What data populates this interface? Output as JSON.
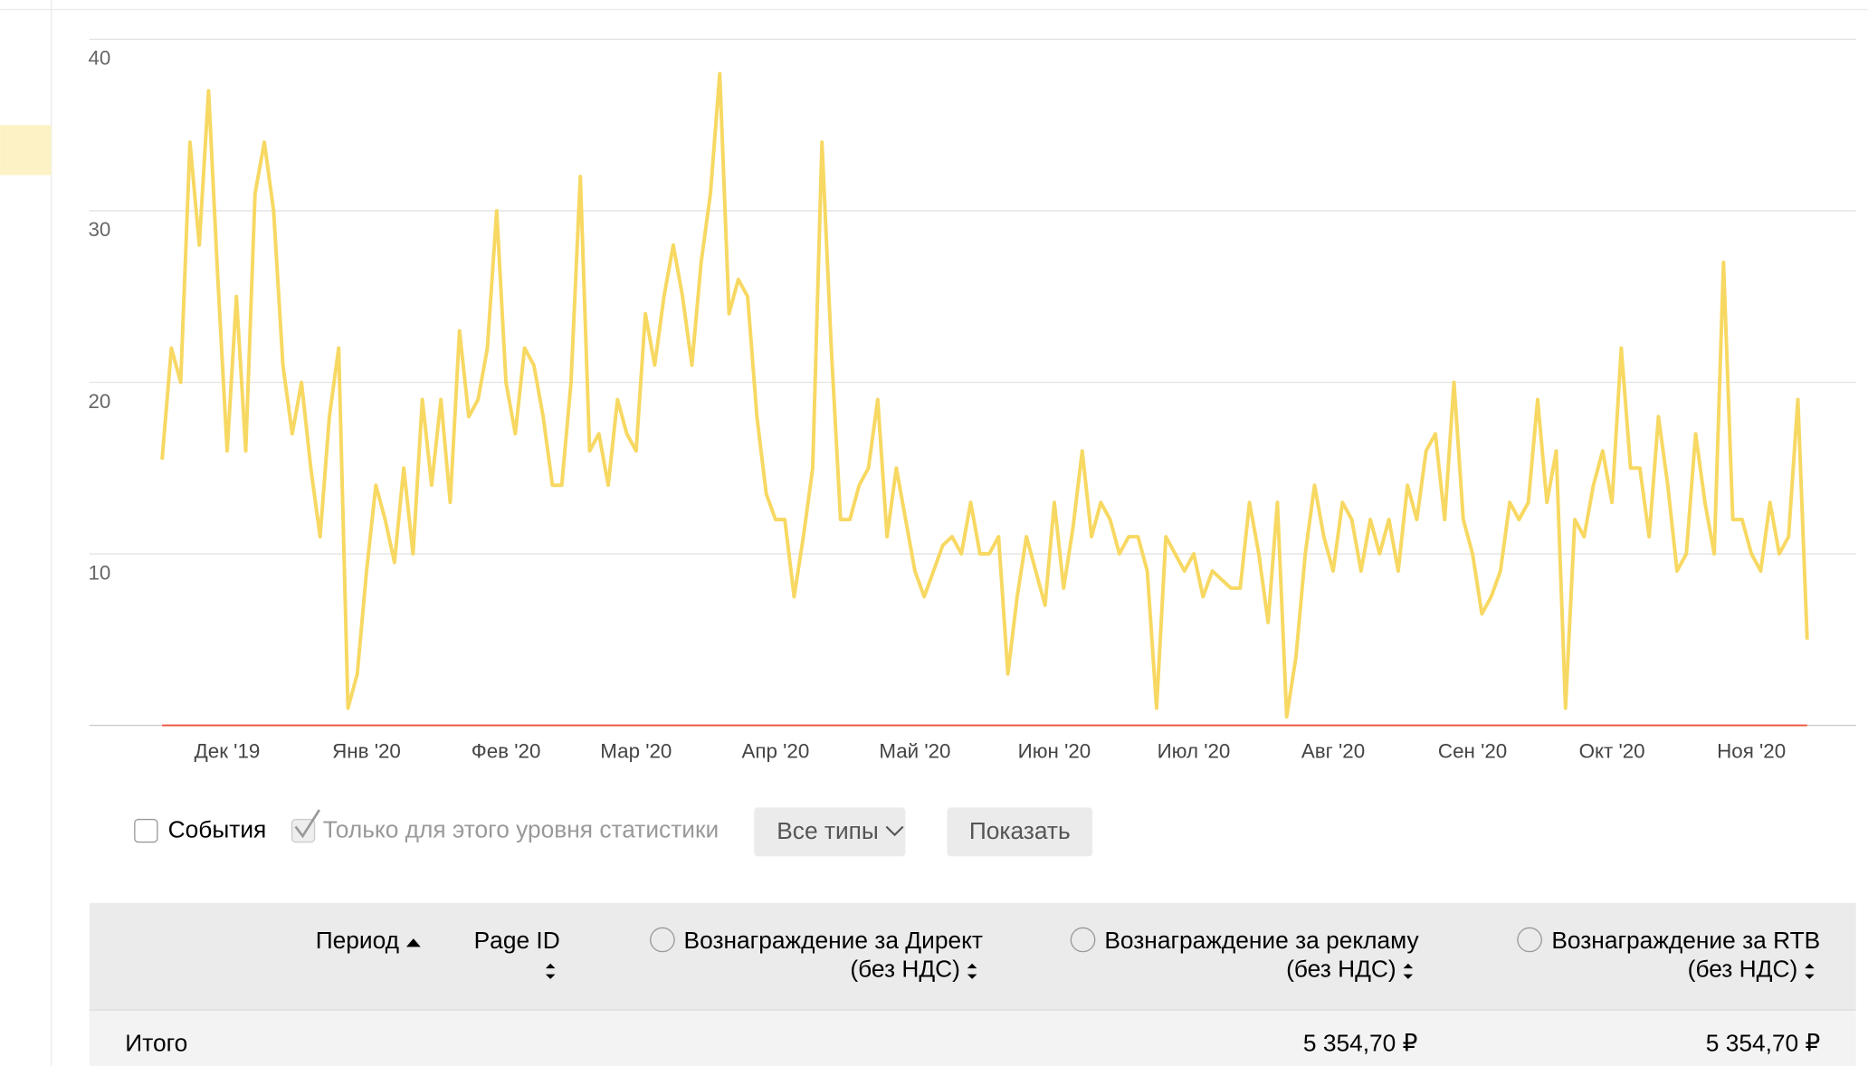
{
  "chart_data": {
    "type": "line",
    "categories": [
      null,
      null,
      null,
      null,
      null,
      null,
      null,
      "Дек '19",
      null,
      null,
      null,
      null,
      null,
      null,
      null,
      null,
      null,
      null,
      null,
      null,
      null,
      null,
      "Янв '20",
      null,
      null,
      null,
      null,
      null,
      null,
      null,
      null,
      null,
      null,
      null,
      null,
      null,
      null,
      "Фев '20",
      null,
      null,
      null,
      null,
      null,
      null,
      null,
      null,
      null,
      null,
      null,
      null,
      null,
      "Мар '20",
      null,
      null,
      null,
      null,
      null,
      null,
      null,
      null,
      null,
      null,
      null,
      null,
      null,
      null,
      "Апр '20",
      null,
      null,
      null,
      null,
      null,
      null,
      null,
      null,
      null,
      null,
      null,
      null,
      null,
      null,
      "Май '20",
      null,
      null,
      null,
      null,
      null,
      null,
      null,
      null,
      null,
      null,
      null,
      null,
      null,
      null,
      "Июн '20",
      null,
      null,
      null,
      null,
      null,
      null,
      null,
      null,
      null,
      null,
      null,
      null,
      null,
      null,
      "Июл '20",
      null,
      null,
      null,
      null,
      null,
      null,
      null,
      null,
      null,
      null,
      null,
      null,
      null,
      null,
      "Авг '20",
      null,
      null,
      null,
      null,
      null,
      null,
      null,
      null,
      null,
      null,
      null,
      null,
      null,
      null,
      "Сен '20",
      null,
      null,
      null,
      null,
      null,
      null,
      null,
      null,
      null,
      null,
      null,
      null,
      null,
      null,
      "Окт '20",
      null,
      null,
      null,
      null,
      null,
      null,
      null,
      null,
      null,
      null,
      null,
      null,
      null,
      null,
      "Ноя '20",
      null,
      null,
      null,
      null,
      null,
      null
    ],
    "series": [
      {
        "color": "#f7d862",
        "values": [
          15.5,
          22,
          20,
          34,
          28,
          37,
          26,
          16,
          25,
          16,
          31,
          34,
          30,
          21,
          17,
          20,
          15,
          11,
          18,
          22,
          1,
          3,
          9,
          14,
          12,
          9.5,
          15,
          10,
          19,
          14,
          19,
          13,
          23,
          18,
          19,
          22,
          30,
          20,
          17,
          22,
          21,
          18,
          14,
          14,
          20,
          32,
          16,
          17,
          14,
          19,
          17,
          16,
          24,
          21,
          25,
          28,
          25,
          21,
          27,
          31,
          38,
          24,
          26,
          25,
          18,
          13.5,
          12,
          12,
          7.5,
          11,
          15,
          34,
          22,
          12,
          12,
          14,
          15,
          19,
          11,
          15,
          12,
          9,
          7.5,
          9,
          10.5,
          11,
          10,
          13,
          10,
          10,
          11,
          3,
          7.5,
          11,
          9,
          7,
          13,
          8,
          11.5,
          16,
          11,
          13,
          12,
          10,
          11,
          11,
          9,
          1,
          11,
          10,
          9,
          10,
          7.5,
          9,
          8.5,
          8,
          8,
          13,
          10,
          6,
          13,
          0.5,
          4,
          10,
          14,
          11,
          9,
          13,
          12,
          9,
          12,
          10,
          12,
          9,
          14,
          12,
          16,
          17,
          12,
          20,
          12,
          10,
          6.5,
          7.5,
          9,
          13,
          12,
          13,
          19,
          13,
          16,
          1,
          12,
          11,
          14,
          16,
          13,
          22,
          15,
          15,
          11,
          18,
          14,
          9,
          10,
          17,
          13,
          10,
          27,
          12,
          12,
          10,
          9,
          13,
          10,
          11,
          19,
          5
        ]
      },
      {
        "color": "#f0503c",
        "values": [
          0,
          0,
          0,
          0,
          0,
          0,
          0,
          0,
          0,
          0,
          0,
          0,
          0,
          0,
          0,
          0,
          0,
          0,
          0,
          0,
          0,
          0,
          0,
          0,
          0,
          0,
          0,
          0,
          0,
          0,
          0,
          0,
          0,
          0,
          0,
          0,
          0,
          0,
          0,
          0,
          0,
          0,
          0,
          0,
          0,
          0,
          0,
          0,
          0,
          0,
          0,
          0,
          0,
          0,
          0,
          0,
          0,
          0,
          0,
          0,
          0,
          0,
          0,
          0,
          0,
          0,
          0,
          0,
          0,
          0,
          0,
          0,
          0,
          0,
          0,
          0,
          0,
          0,
          0,
          0,
          0,
          0,
          0,
          0,
          0,
          0,
          0,
          0,
          0,
          0,
          0,
          0,
          0,
          0,
          0,
          0,
          0,
          0,
          0,
          0,
          0,
          0,
          0,
          0,
          0,
          0,
          0,
          0,
          0,
          0,
          0,
          0,
          0,
          0,
          0,
          0,
          0,
          0,
          0,
          0,
          0,
          0,
          0,
          0,
          0,
          0,
          0,
          0,
          0,
          0,
          0,
          0,
          0,
          0,
          0,
          0,
          0,
          0,
          0,
          0,
          0,
          0,
          0,
          0,
          0,
          0,
          0,
          0,
          0,
          0,
          0,
          0,
          0,
          0,
          0,
          0,
          0,
          0,
          0,
          0,
          0,
          0,
          0,
          0,
          0,
          0,
          0,
          0,
          0,
          0,
          0,
          0,
          0,
          0,
          0,
          0,
          0,
          0
        ]
      }
    ],
    "ylim": [
      0,
      40
    ],
    "yticks": [
      10,
      20,
      30,
      40
    ],
    "grid": true
  },
  "controls": {
    "events": "События",
    "only_level": "Только для этого уровня статистики",
    "types_dropdown": "Все типы",
    "show_button": "Показать"
  },
  "table": {
    "headers": [
      {
        "label": "Период"
      },
      {
        "label": "Page ID"
      },
      {
        "label": "Вознаграждение за Директ",
        "sub": "(без НДС)"
      },
      {
        "label": "Вознаграждение за рекламу",
        "sub": "(без НДС)"
      },
      {
        "label": "Вознаграждение за RTB",
        "sub": "(без НДС)"
      }
    ],
    "total": {
      "label": "Итого",
      "reward_ads": "5 354,70 ₽",
      "reward_rtb": "5 354,70 ₽"
    }
  }
}
